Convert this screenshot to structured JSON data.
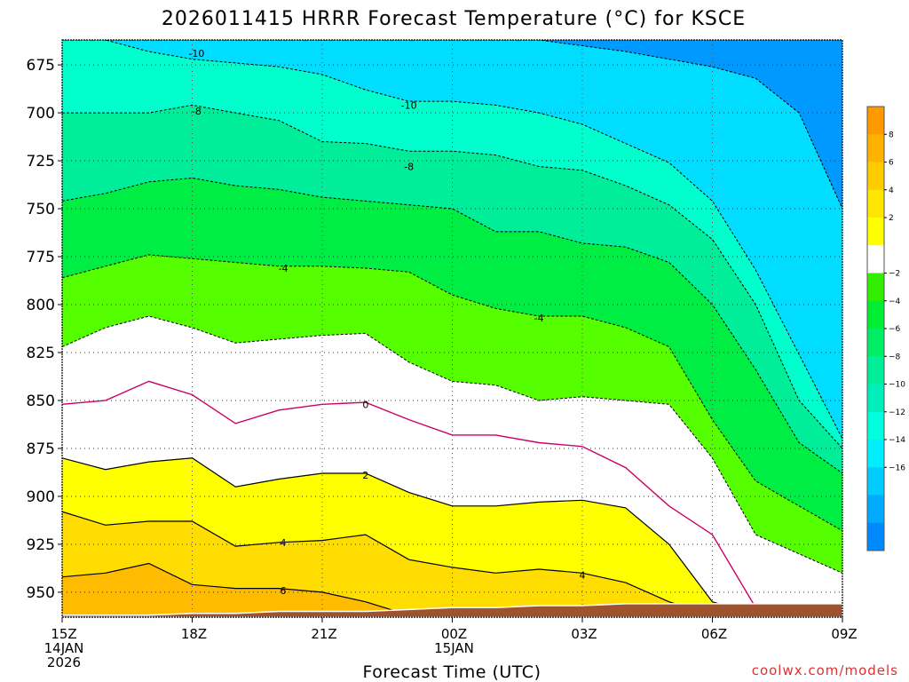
{
  "chart_data": {
    "type": "contour",
    "title": "2026011415 HRRR Forecast Temperature (°C) for KSCE",
    "xlabel": "Forecast Time (UTC)",
    "ylabel": "",
    "watermark": "coolwx.com/models",
    "x_hours": [
      0,
      1,
      2,
      3,
      4,
      5,
      6,
      7,
      8,
      9,
      10,
      11,
      12,
      13,
      14,
      15,
      16,
      17,
      18
    ],
    "xlim": [
      0,
      18
    ],
    "ylim": [
      963,
      662
    ],
    "x_ticks": [
      {
        "hour": 0,
        "lines": [
          "15Z",
          "14JAN",
          "2026"
        ]
      },
      {
        "hour": 3,
        "lines": [
          "18Z"
        ]
      },
      {
        "hour": 6,
        "lines": [
          "21Z"
        ]
      },
      {
        "hour": 9,
        "lines": [
          "00Z",
          "15JAN"
        ]
      },
      {
        "hour": 12,
        "lines": [
          "03Z"
        ]
      },
      {
        "hour": 15,
        "lines": [
          "06Z"
        ]
      },
      {
        "hour": 18,
        "lines": [
          "09Z"
        ]
      }
    ],
    "y_ticks": [
      "675",
      "700",
      "725",
      "750",
      "775",
      "800",
      "825",
      "850",
      "875",
      "900",
      "925",
      "950"
    ],
    "isotherm_pressures_hPa": {
      "-12": [
        660,
        660,
        660,
        660,
        660,
        660,
        660,
        660,
        660,
        660,
        660,
        662,
        665,
        668,
        672,
        676,
        682,
        700,
        750
      ],
      "-10": [
        660,
        662,
        668,
        672,
        674,
        676,
        680,
        688,
        694,
        694,
        696,
        700,
        706,
        716,
        726,
        746,
        782,
        826,
        870
      ],
      "-8": [
        700,
        700,
        700,
        696,
        700,
        704,
        715,
        716,
        720,
        720,
        722,
        728,
        730,
        738,
        748,
        766,
        800,
        850,
        875
      ],
      "-6": [
        746,
        742,
        736,
        734,
        738,
        740,
        744,
        746,
        748,
        750,
        762,
        762,
        768,
        770,
        778,
        800,
        834,
        872,
        888
      ],
      "-4": [
        786,
        780,
        774,
        776,
        778,
        780,
        780,
        781,
        783,
        795,
        802,
        806,
        806,
        812,
        822,
        860,
        892,
        905,
        918
      ],
      "-2": [
        822,
        812,
        806,
        812,
        820,
        818,
        816,
        815,
        830,
        840,
        842,
        850,
        848,
        850,
        852,
        880,
        920,
        930,
        940
      ],
      "0": [
        852,
        850,
        840,
        847,
        862,
        855,
        852,
        851,
        860,
        868,
        868,
        872,
        874,
        885,
        905,
        920,
        958,
        960,
        962
      ],
      "2": [
        880,
        886,
        882,
        880,
        895,
        891,
        888,
        888,
        898,
        905,
        905,
        903,
        902,
        906,
        925,
        955,
        962,
        962,
        962
      ],
      "4": [
        908,
        915,
        913,
        913,
        926,
        924,
        923,
        920,
        933,
        937,
        940,
        938,
        940,
        945,
        955,
        962,
        962,
        962,
        962
      ],
      "6": [
        942,
        940,
        935,
        946,
        948,
        948,
        950,
        955,
        962,
        962,
        962,
        962,
        962,
        962,
        962,
        962,
        962,
        962,
        962
      ]
    },
    "ground_pressure_hPa": [
      962,
      962,
      962,
      961,
      961,
      960,
      960,
      960,
      959,
      958,
      958,
      957,
      957,
      956,
      956,
      956,
      956,
      956,
      956
    ],
    "contour_labels": [
      {
        "text": "-10",
        "hour": 3.1,
        "pressure": 669
      },
      {
        "text": "-10",
        "hour": 8.0,
        "pressure": 696
      },
      {
        "text": "-8",
        "hour": 3.1,
        "pressure": 699
      },
      {
        "text": "-8",
        "hour": 8.0,
        "pressure": 728
      },
      {
        "text": "-4",
        "hour": 5.1,
        "pressure": 781
      },
      {
        "text": "-4",
        "hour": 11.0,
        "pressure": 807
      },
      {
        "text": "0",
        "hour": 7.0,
        "pressure": 852
      },
      {
        "text": "2",
        "hour": 7.0,
        "pressure": 889
      },
      {
        "text": "4",
        "hour": 5.1,
        "pressure": 924
      },
      {
        "text": "4",
        "hour": 12.0,
        "pressure": 941
      },
      {
        "text": "6",
        "hour": 5.1,
        "pressure": 949
      }
    ],
    "colorbar": {
      "ticks": [
        "8",
        "6",
        "4",
        "2",
        "−2",
        "−4",
        "−6",
        "−8",
        "−10",
        "−12",
        "−14",
        "−16"
      ],
      "colors": [
        "#ff9900",
        "#ffb300",
        "#ffcc00",
        "#ffe600",
        "#ffff00",
        "#ffffff",
        "#33ee00",
        "#00ee33",
        "#00ee66",
        "#00ee99",
        "#00eebb",
        "#00ffdd",
        "#00eeff",
        "#00ccff",
        "#00aaff",
        "#0088ff"
      ]
    },
    "band_colors": {
      "le_-12": "#0099ff",
      "-12_-10": "#00ddff",
      "-10_-8": "#00ffcc",
      "-8_-6": "#00ee99",
      "-6_-4": "#00ee44",
      "-4_-2": "#55ff00",
      "-2_0": "#ffffff",
      "0_2": "#ffffff",
      "2_4": "#ffff00",
      "4_6": "#ffdd00",
      "ge_6": "#ffbb00",
      "ground": "#a0522d"
    },
    "line_colors": {
      "cold": "#000000",
      "freezing": "#cc0066",
      "warm": "#000000"
    }
  }
}
